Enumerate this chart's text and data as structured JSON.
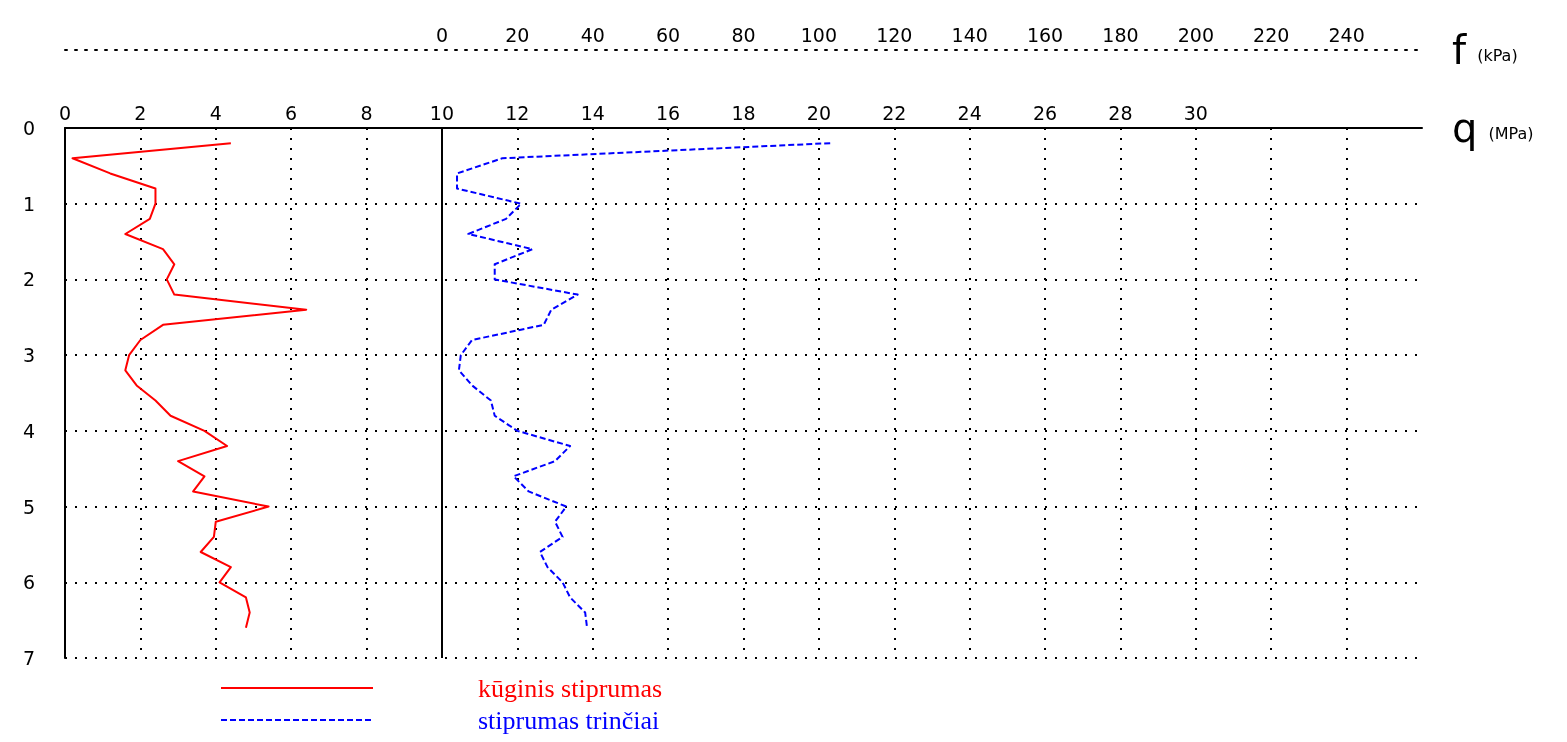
{
  "chart_data": {
    "type": "line",
    "xlabel": "q (MPa)",
    "x2label": "f (kPa)",
    "xlim": [
      0,
      36
    ],
    "xticks": [
      0,
      2,
      4,
      6,
      8,
      10,
      12,
      14,
      16,
      18,
      20,
      22,
      24,
      26,
      28,
      30,
      {
        "value": 32,
        "label": null
      },
      {
        "value": 34,
        "label": null
      }
    ],
    "x2lim": [
      -100,
      260
    ],
    "x2ticks": [
      0,
      20,
      40,
      60,
      80,
      100,
      120,
      140,
      160,
      180,
      200,
      220,
      240
    ],
    "ylim": [
      7,
      0
    ],
    "yticks": [
      0,
      1,
      2,
      3,
      4,
      5,
      6,
      7
    ],
    "grid": true,
    "legend": "bottom left",
    "marker": "none",
    "ref_lines": [
      {
        "axis": "x",
        "value": 10,
        "color": "#000000",
        "line_style": "solid"
      }
    ],
    "series": [
      {
        "name": "kūginis stiprumas",
        "color": "#ff0000",
        "line_style": "solid",
        "x": [
          4.4,
          0.2,
          1.2,
          2.4,
          2.4,
          2.25,
          1.6,
          2.6,
          2.9,
          2.7,
          2.9,
          6.4,
          2.6,
          2.0,
          1.7,
          1.6,
          1.9,
          2.4,
          2.8,
          3.7,
          4.3,
          3.0,
          3.7,
          3.4,
          5.4,
          4.0,
          3.95,
          3.6,
          4.4,
          4.1,
          4.8,
          4.9,
          4.8
        ],
        "values": [
          0.2,
          0.4,
          0.6,
          0.8,
          1.0,
          1.2,
          1.4,
          1.6,
          1.8,
          2.0,
          2.2,
          2.4,
          2.6,
          2.8,
          3.0,
          3.2,
          3.4,
          3.6,
          3.8,
          4.0,
          4.2,
          4.4,
          4.6,
          4.8,
          5.0,
          5.2,
          5.4,
          5.6,
          5.8,
          6.0,
          6.2,
          6.4,
          6.6
        ]
      },
      {
        "name": "stiprumas trinčiai",
        "color": "#0000ff",
        "line_style": "dashed",
        "axis": "x2",
        "x": [
          103,
          16,
          4,
          4,
          21,
          17,
          7,
          24,
          14,
          14,
          36,
          29,
          27,
          8,
          5,
          4.5,
          8,
          13,
          14,
          20,
          34,
          30,
          19,
          23,
          33,
          30,
          32,
          26,
          28,
          32,
          34,
          38,
          38.5
        ],
        "values": [
          0.2,
          0.4,
          0.6,
          0.8,
          1.0,
          1.2,
          1.4,
          1.6,
          1.8,
          2.0,
          2.2,
          2.4,
          2.6,
          2.8,
          3.0,
          3.2,
          3.4,
          3.6,
          3.8,
          4.0,
          4.2,
          4.4,
          4.6,
          4.8,
          5.0,
          5.2,
          5.4,
          5.6,
          5.8,
          6.0,
          6.2,
          6.4,
          6.6
        ]
      }
    ]
  }
}
